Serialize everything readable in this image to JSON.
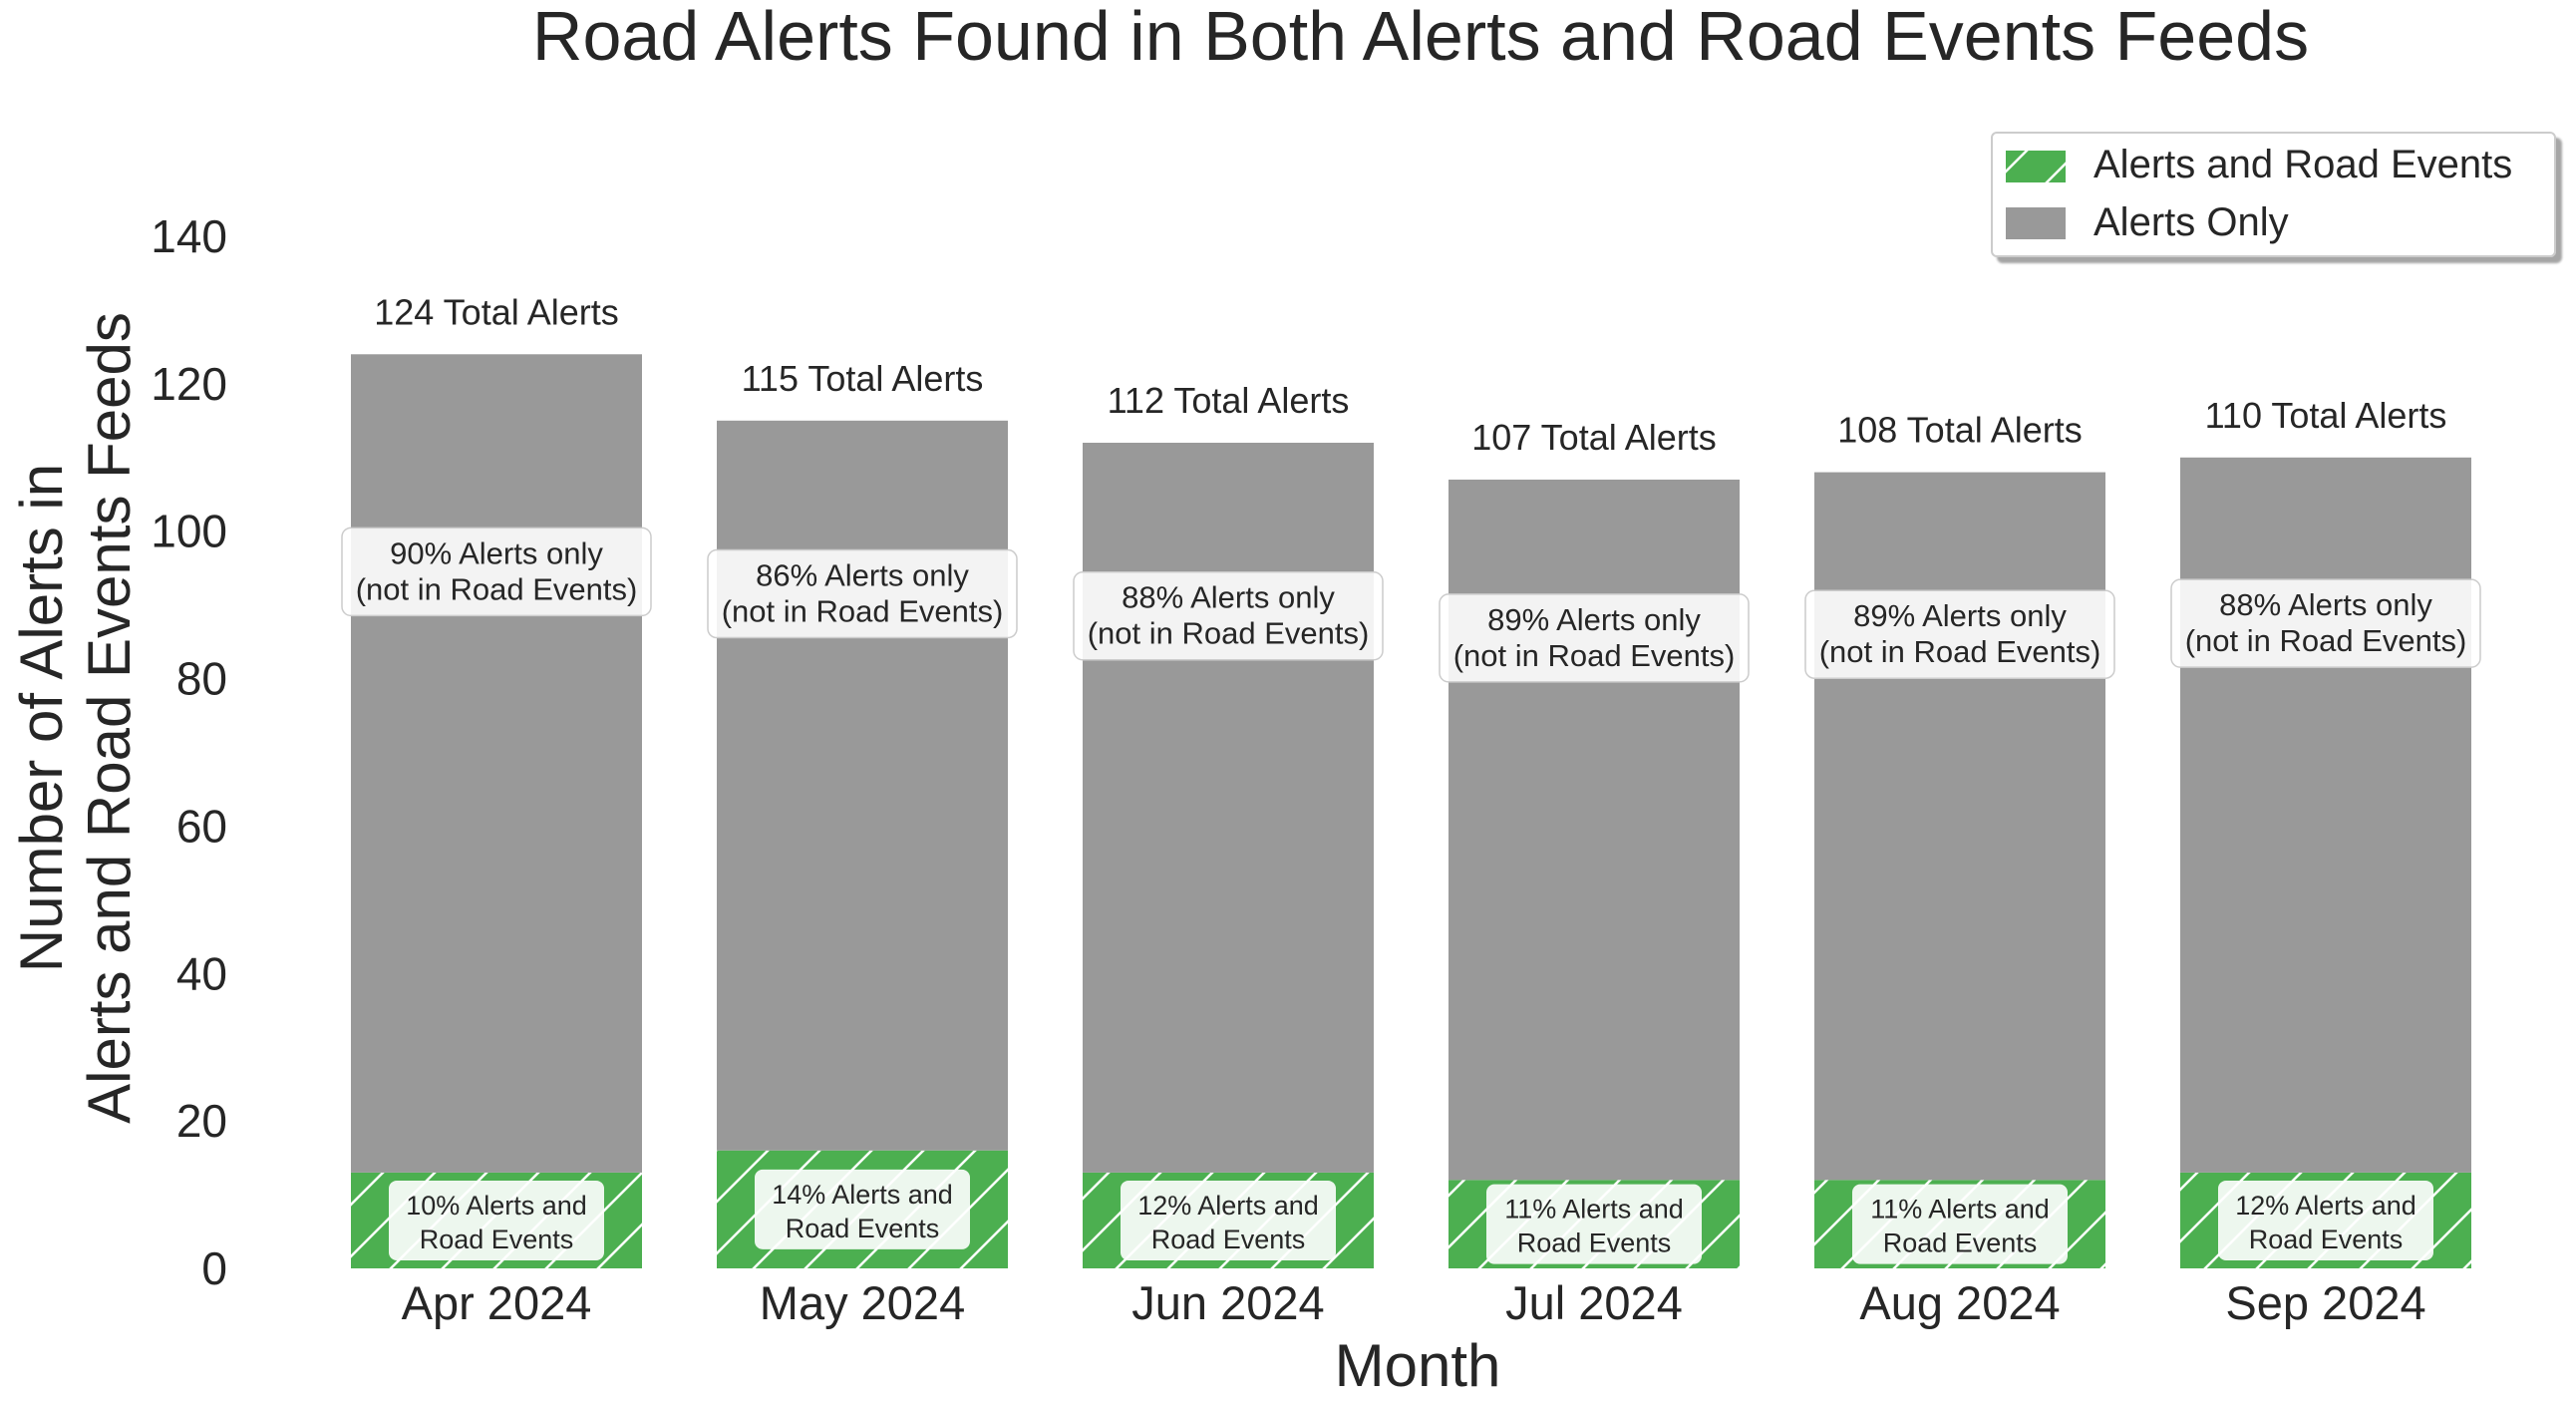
{
  "chart_data": {
    "type": "bar",
    "stacked": true,
    "title": "Road Alerts Found in Both Alerts and Road Events Feeds",
    "xlabel": "Month",
    "ylabel_line1": "Number of Alerts in",
    "ylabel_line2": "Alerts and Road Events Feeds",
    "ylim": [
      0,
      140
    ],
    "yticks": [
      0,
      20,
      40,
      60,
      80,
      100,
      120,
      140
    ],
    "grid": false,
    "legend_position": "top-right",
    "categories": [
      "Apr 2024",
      "May 2024",
      "Jun 2024",
      "Jul 2024",
      "Aug 2024",
      "Sep 2024"
    ],
    "series": [
      {
        "name": "Alerts and Road Events",
        "color": "#4caf50",
        "hatch": "/",
        "values": [
          13,
          16,
          13,
          12,
          12,
          13
        ],
        "labels": [
          [
            "10% Alerts and",
            "Road Events"
          ],
          [
            "14% Alerts and",
            "Road Events"
          ],
          [
            "12% Alerts and",
            "Road Events"
          ],
          [
            "11% Alerts and",
            "Road Events"
          ],
          [
            "11% Alerts and",
            "Road Events"
          ],
          [
            "12% Alerts and",
            "Road Events"
          ]
        ]
      },
      {
        "name": "Alerts Only",
        "color": "#999999",
        "values": [
          111,
          99,
          99,
          95,
          96,
          97
        ],
        "labels": [
          [
            "90% Alerts only",
            "(not in Road Events)"
          ],
          [
            "86% Alerts only",
            "(not in Road Events)"
          ],
          [
            "88% Alerts only",
            "(not in Road Events)"
          ],
          [
            "89% Alerts only",
            "(not in Road Events)"
          ],
          [
            "89% Alerts only",
            "(not in Road Events)"
          ],
          [
            "88% Alerts only",
            "(not in Road Events)"
          ]
        ]
      }
    ],
    "totals": [
      124,
      115,
      112,
      107,
      108,
      110
    ],
    "total_labels": [
      "124 Total Alerts",
      "115 Total Alerts",
      "112 Total Alerts",
      "107 Total Alerts",
      "108 Total Alerts",
      "110 Total Alerts"
    ]
  }
}
